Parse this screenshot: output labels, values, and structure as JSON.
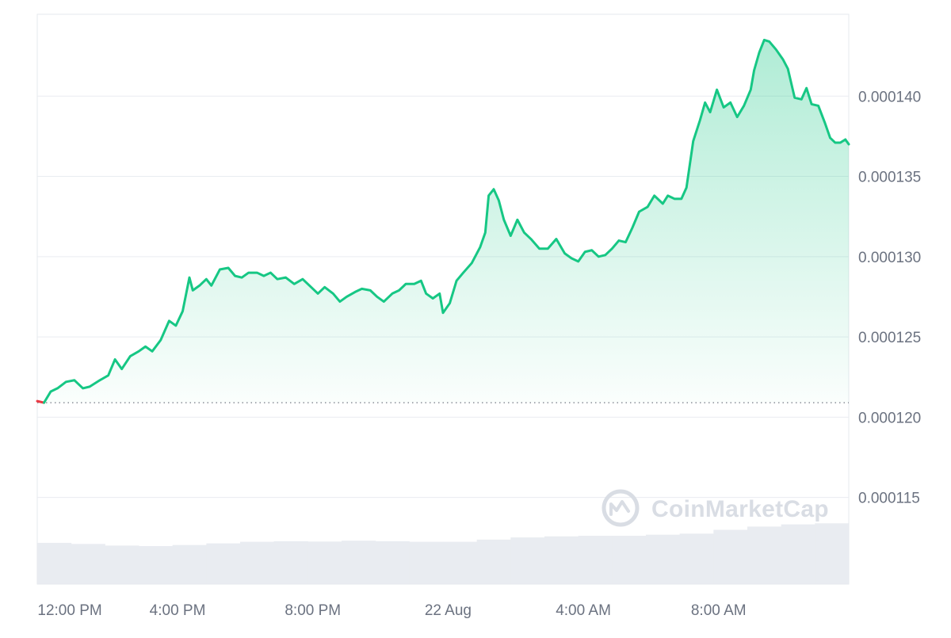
{
  "colors": {
    "line_up": "#16c784",
    "line_down": "#ea3943",
    "baseline": "#8a8f98",
    "volume": "#e9ecf1",
    "tick_text": "#6b7280",
    "grid": "#e9ecf1",
    "watermark": "#d9dde4"
  },
  "watermark": {
    "text": "CoinMarketCap",
    "icon": "coinmarketcap-logo-icon"
  },
  "chart_data": {
    "type": "area",
    "x_axis_type": "time",
    "xtick_labels": [
      "12:00 PM",
      "4:00 PM",
      "8:00 PM",
      "22 Aug",
      "4:00 AM",
      "8:00 AM"
    ],
    "xtick_hours": [
      12,
      16,
      20,
      24,
      28,
      32
    ],
    "xlim_hours": [
      11.85,
      35.85
    ],
    "ytick_labels": [
      "0.000115",
      "0.000120",
      "0.000125",
      "0.000130",
      "0.000135",
      "0.000140"
    ],
    "ytick_values": [
      0.000115,
      0.00012,
      0.000125,
      0.00013,
      0.000135,
      0.00014
    ],
    "ylim": [
      0.0001096,
      0.0001451
    ],
    "ytick_side": "right",
    "grid": true,
    "baseline_value": 0.0001209,
    "series": [
      {
        "values": [
          [
            11.85,
            0.000121
          ],
          [
            12.05,
            0.0001209
          ],
          [
            12.25,
            0.0001216
          ],
          [
            12.45,
            0.0001218
          ],
          [
            12.7,
            0.0001222
          ],
          [
            12.95,
            0.0001223
          ],
          [
            13.2,
            0.0001218
          ],
          [
            13.4,
            0.0001219
          ],
          [
            13.7,
            0.0001223
          ],
          [
            13.95,
            0.0001226
          ],
          [
            14.15,
            0.0001236
          ],
          [
            14.35,
            0.000123
          ],
          [
            14.6,
            0.0001238
          ],
          [
            14.85,
            0.0001241
          ],
          [
            15.05,
            0.0001244
          ],
          [
            15.25,
            0.0001241
          ],
          [
            15.5,
            0.0001248
          ],
          [
            15.75,
            0.000126
          ],
          [
            15.95,
            0.0001257
          ],
          [
            16.15,
            0.0001266
          ],
          [
            16.35,
            0.0001287
          ],
          [
            16.45,
            0.0001279
          ],
          [
            16.65,
            0.0001282
          ],
          [
            16.85,
            0.0001286
          ],
          [
            17.0,
            0.0001282
          ],
          [
            17.25,
            0.0001292
          ],
          [
            17.5,
            0.0001293
          ],
          [
            17.7,
            0.0001288
          ],
          [
            17.9,
            0.0001287
          ],
          [
            18.1,
            0.000129
          ],
          [
            18.35,
            0.000129
          ],
          [
            18.55,
            0.0001288
          ],
          [
            18.75,
            0.000129
          ],
          [
            18.95,
            0.0001286
          ],
          [
            19.2,
            0.0001287
          ],
          [
            19.45,
            0.0001283
          ],
          [
            19.7,
            0.0001286
          ],
          [
            19.95,
            0.0001281
          ],
          [
            20.15,
            0.0001277
          ],
          [
            20.35,
            0.0001281
          ],
          [
            20.6,
            0.0001277
          ],
          [
            20.8,
            0.0001272
          ],
          [
            21.0,
            0.0001275
          ],
          [
            21.25,
            0.0001278
          ],
          [
            21.45,
            0.000128
          ],
          [
            21.7,
            0.0001279
          ],
          [
            21.9,
            0.0001275
          ],
          [
            22.1,
            0.0001272
          ],
          [
            22.35,
            0.0001277
          ],
          [
            22.55,
            0.0001279
          ],
          [
            22.75,
            0.0001283
          ],
          [
            23.0,
            0.0001283
          ],
          [
            23.2,
            0.0001285
          ],
          [
            23.35,
            0.0001277
          ],
          [
            23.55,
            0.0001274
          ],
          [
            23.75,
            0.0001277
          ],
          [
            23.85,
            0.0001265
          ],
          [
            24.05,
            0.0001271
          ],
          [
            24.25,
            0.0001285
          ],
          [
            24.45,
            0.000129
          ],
          [
            24.7,
            0.0001296
          ],
          [
            24.95,
            0.0001306
          ],
          [
            25.1,
            0.0001315
          ],
          [
            25.2,
            0.0001338
          ],
          [
            25.35,
            0.0001342
          ],
          [
            25.5,
            0.0001335
          ],
          [
            25.65,
            0.0001323
          ],
          [
            25.85,
            0.0001313
          ],
          [
            26.05,
            0.0001323
          ],
          [
            26.25,
            0.0001315
          ],
          [
            26.45,
            0.0001311
          ],
          [
            26.7,
            0.0001305
          ],
          [
            26.95,
            0.0001305
          ],
          [
            27.2,
            0.0001311
          ],
          [
            27.45,
            0.0001302
          ],
          [
            27.65,
            0.0001299
          ],
          [
            27.85,
            0.0001297
          ],
          [
            28.05,
            0.0001303
          ],
          [
            28.25,
            0.0001304
          ],
          [
            28.45,
            0.00013
          ],
          [
            28.65,
            0.0001301
          ],
          [
            28.85,
            0.0001305
          ],
          [
            29.05,
            0.000131
          ],
          [
            29.25,
            0.0001309
          ],
          [
            29.45,
            0.0001318
          ],
          [
            29.65,
            0.0001328
          ],
          [
            29.9,
            0.0001331
          ],
          [
            30.1,
            0.0001338
          ],
          [
            30.35,
            0.0001333
          ],
          [
            30.5,
            0.0001338
          ],
          [
            30.7,
            0.0001336
          ],
          [
            30.9,
            0.0001336
          ],
          [
            31.05,
            0.0001343
          ],
          [
            31.25,
            0.0001372
          ],
          [
            31.45,
            0.0001385
          ],
          [
            31.6,
            0.0001396
          ],
          [
            31.75,
            0.000139
          ],
          [
            31.95,
            0.0001404
          ],
          [
            32.15,
            0.0001393
          ],
          [
            32.35,
            0.0001396
          ],
          [
            32.55,
            0.0001387
          ],
          [
            32.75,
            0.0001394
          ],
          [
            32.95,
            0.0001404
          ],
          [
            33.05,
            0.0001416
          ],
          [
            33.2,
            0.0001427
          ],
          [
            33.35,
            0.0001435
          ],
          [
            33.5,
            0.0001434
          ],
          [
            33.7,
            0.0001429
          ],
          [
            33.9,
            0.0001423
          ],
          [
            34.05,
            0.0001417
          ],
          [
            34.25,
            0.0001399
          ],
          [
            34.45,
            0.0001398
          ],
          [
            34.6,
            0.0001405
          ],
          [
            34.75,
            0.0001395
          ],
          [
            34.95,
            0.0001394
          ],
          [
            35.15,
            0.0001383
          ],
          [
            35.3,
            0.0001374
          ],
          [
            35.45,
            0.0001371
          ],
          [
            35.6,
            0.0001371
          ],
          [
            35.75,
            0.0001373
          ],
          [
            35.85,
            0.000137
          ]
        ]
      }
    ],
    "volume": {
      "ylim": [
        0,
        1
      ],
      "values": [
        [
          11.85,
          0.38
        ],
        [
          12.85,
          0.37
        ],
        [
          13.85,
          0.355
        ],
        [
          14.85,
          0.35
        ],
        [
          15.85,
          0.36
        ],
        [
          16.85,
          0.375
        ],
        [
          17.85,
          0.39
        ],
        [
          18.85,
          0.395
        ],
        [
          19.85,
          0.392
        ],
        [
          20.85,
          0.4
        ],
        [
          21.85,
          0.395
        ],
        [
          22.85,
          0.39
        ],
        [
          23.85,
          0.39
        ],
        [
          24.85,
          0.41
        ],
        [
          25.85,
          0.43
        ],
        [
          26.85,
          0.44
        ],
        [
          27.85,
          0.445
        ],
        [
          28.85,
          0.445
        ],
        [
          29.85,
          0.455
        ],
        [
          30.85,
          0.465
        ],
        [
          31.85,
          0.5
        ],
        [
          32.85,
          0.53
        ],
        [
          33.85,
          0.55
        ],
        [
          34.85,
          0.56
        ],
        [
          35.85,
          0.56
        ]
      ]
    }
  }
}
